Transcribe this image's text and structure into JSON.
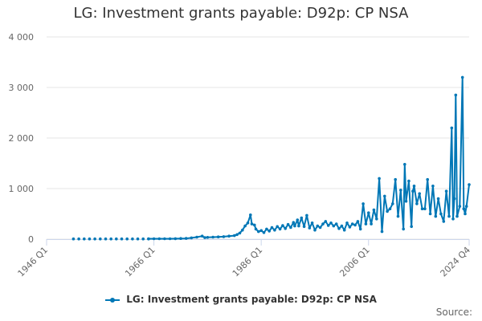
{
  "title": "LG: Investment grants payable: D92p: CP NSA",
  "credit": "Source:",
  "colors": {
    "series": "#0077b6",
    "grid": "#e6e6e6"
  },
  "chart_data": {
    "type": "line",
    "title": "LG: Investment grants payable: D92p: CP NSA",
    "xlabel": "",
    "ylabel": "",
    "x_tick_labels": [
      "1946 Q1",
      "1966 Q1",
      "1986 Q1",
      "2006 Q1",
      "2024 Q4"
    ],
    "x_tick_years": [
      1946.0,
      1966.0,
      1986.0,
      2006.0,
      2024.75
    ],
    "y_tick_values": [
      0,
      1000,
      2000,
      3000,
      4000
    ],
    "y_tick_labels": [
      "0",
      "1 000",
      "2 000",
      "3 000",
      "4 000"
    ],
    "xlim": [
      1946.0,
      2024.75
    ],
    "ylim": [
      0,
      4000
    ],
    "grid": true,
    "legend_position": "bottom-center",
    "series": [
      {
        "name": "LG: Investment grants payable: D92p: CP NSA",
        "points": [
          [
            "1951",
            5
          ],
          [
            "1952",
            5
          ],
          [
            "1953",
            5
          ],
          [
            "1954",
            5
          ],
          [
            "1955",
            5
          ],
          [
            "1956",
            5
          ],
          [
            "1957",
            5
          ],
          [
            "1958",
            5
          ],
          [
            "1959",
            5
          ],
          [
            "1960",
            5
          ],
          [
            "1961",
            5
          ],
          [
            "1962",
            5
          ],
          [
            "1963",
            5
          ],
          [
            "1964",
            5
          ],
          [
            "1965",
            5
          ],
          [
            "1965 Q1",
            8
          ],
          [
            "1966 Q1",
            8
          ],
          [
            "1967 Q1",
            8
          ],
          [
            "1968 Q1",
            8
          ],
          [
            "1969 Q1",
            8
          ],
          [
            "1970 Q1",
            10
          ],
          [
            "1971 Q1",
            12
          ],
          [
            "1972 Q1",
            15
          ],
          [
            "1973 Q1",
            25
          ],
          [
            "1974 Q1",
            40
          ],
          [
            "1975 Q1",
            60
          ],
          [
            "1975 Q3",
            30
          ],
          [
            "1976 Q1",
            35
          ],
          [
            "1977 Q1",
            40
          ],
          [
            "1978 Q1",
            45
          ],
          [
            "1979 Q1",
            50
          ],
          [
            "1980 Q1",
            60
          ],
          [
            "1981 Q1",
            70
          ],
          [
            "1981 Q3",
            90
          ],
          [
            "1982 Q1",
            120
          ],
          [
            "1982 Q3",
            180
          ],
          [
            "1983 Q1",
            260
          ],
          [
            "1983 Q3",
            320
          ],
          [
            "1984 Q1",
            480
          ],
          [
            "1984 Q2",
            300
          ],
          [
            "1984 Q4",
            280
          ],
          [
            "1985 Q1",
            200
          ],
          [
            "1985 Q3",
            150
          ],
          [
            "1986 Q1",
            170
          ],
          [
            "1986 Q3",
            130
          ],
          [
            "1987 Q1",
            200
          ],
          [
            "1987 Q3",
            160
          ],
          [
            "1988 Q1",
            230
          ],
          [
            "1988 Q3",
            180
          ],
          [
            "1989 Q1",
            250
          ],
          [
            "1989 Q3",
            200
          ],
          [
            "1990 Q1",
            270
          ],
          [
            "1990 Q3",
            210
          ],
          [
            "1991 Q1",
            290
          ],
          [
            "1991 Q3",
            230
          ],
          [
            "1992 Q1",
            330
          ],
          [
            "1992 Q2",
            260
          ],
          [
            "1992 Q4",
            380
          ],
          [
            "1993 Q1",
            260
          ],
          [
            "1993 Q3",
            420
          ],
          [
            "1994 Q1",
            250
          ],
          [
            "1994 Q3",
            470
          ],
          [
            "1995 Q1",
            220
          ],
          [
            "1995 Q3",
            320
          ],
          [
            "1996 Q1",
            180
          ],
          [
            "1996 Q3",
            260
          ],
          [
            "1997 Q1",
            230
          ],
          [
            "1997 Q3",
            300
          ],
          [
            "1998 Q1",
            350
          ],
          [
            "1998 Q3",
            270
          ],
          [
            "1999 Q1",
            320
          ],
          [
            "1999 Q3",
            260
          ],
          [
            "2000 Q1",
            300
          ],
          [
            "2000 Q3",
            210
          ],
          [
            "2001 Q1",
            260
          ],
          [
            "2001 Q3",
            180
          ],
          [
            "2002 Q1",
            320
          ],
          [
            "2002 Q3",
            240
          ],
          [
            "2003 Q1",
            300
          ],
          [
            "2003 Q3",
            280
          ],
          [
            "2004 Q1",
            350
          ],
          [
            "2004 Q3",
            200
          ],
          [
            "2005 Q1",
            700
          ],
          [
            "2005 Q3",
            300
          ],
          [
            "2006 Q1",
            520
          ],
          [
            "2006 Q3",
            300
          ],
          [
            "2007 Q1",
            580
          ],
          [
            "2007 Q3",
            400
          ],
          [
            "2008 Q1",
            1200
          ],
          [
            "2008 Q3",
            150
          ],
          [
            "2009 Q1",
            850
          ],
          [
            "2009 Q3",
            550
          ],
          [
            "2010 Q1",
            600
          ],
          [
            "2010 Q3",
            700
          ],
          [
            "2011 Q1",
            1180
          ],
          [
            "2011 Q3",
            450
          ],
          [
            "2012 Q1",
            970
          ],
          [
            "2012 Q3",
            200
          ],
          [
            "2012 Q4",
            1480
          ],
          [
            "2013 Q1",
            750
          ],
          [
            "2013 Q3",
            1150
          ],
          [
            "2014 Q1",
            250
          ],
          [
            "2014 Q2",
            950
          ],
          [
            "2014 Q3",
            1050
          ],
          [
            "2015 Q1",
            700
          ],
          [
            "2015 Q3",
            900
          ],
          [
            "2016 Q1",
            600
          ],
          [
            "2016 Q3",
            600
          ],
          [
            "2017 Q1",
            1180
          ],
          [
            "2017 Q3",
            500
          ],
          [
            "2018 Q1",
            1050
          ],
          [
            "2018 Q3",
            450
          ],
          [
            "2019 Q1",
            800
          ],
          [
            "2019 Q3",
            500
          ],
          [
            "2020 Q1",
            350
          ],
          [
            "2020 Q3",
            950
          ],
          [
            "2021 Q1",
            450
          ],
          [
            "2021 Q3",
            2200
          ],
          [
            "2021 Q4",
            400
          ],
          [
            "2022 Q1",
            800
          ],
          [
            "2022 Q2",
            2850
          ],
          [
            "2022 Q3",
            450
          ],
          [
            "2023 Q1",
            650
          ],
          [
            "2023 Q3",
            3200
          ],
          [
            "2023 Q4",
            600
          ],
          [
            "2024 Q1",
            500
          ],
          [
            "2024 Q2",
            650
          ],
          [
            "2024 Q4",
            1080
          ]
        ]
      }
    ]
  }
}
